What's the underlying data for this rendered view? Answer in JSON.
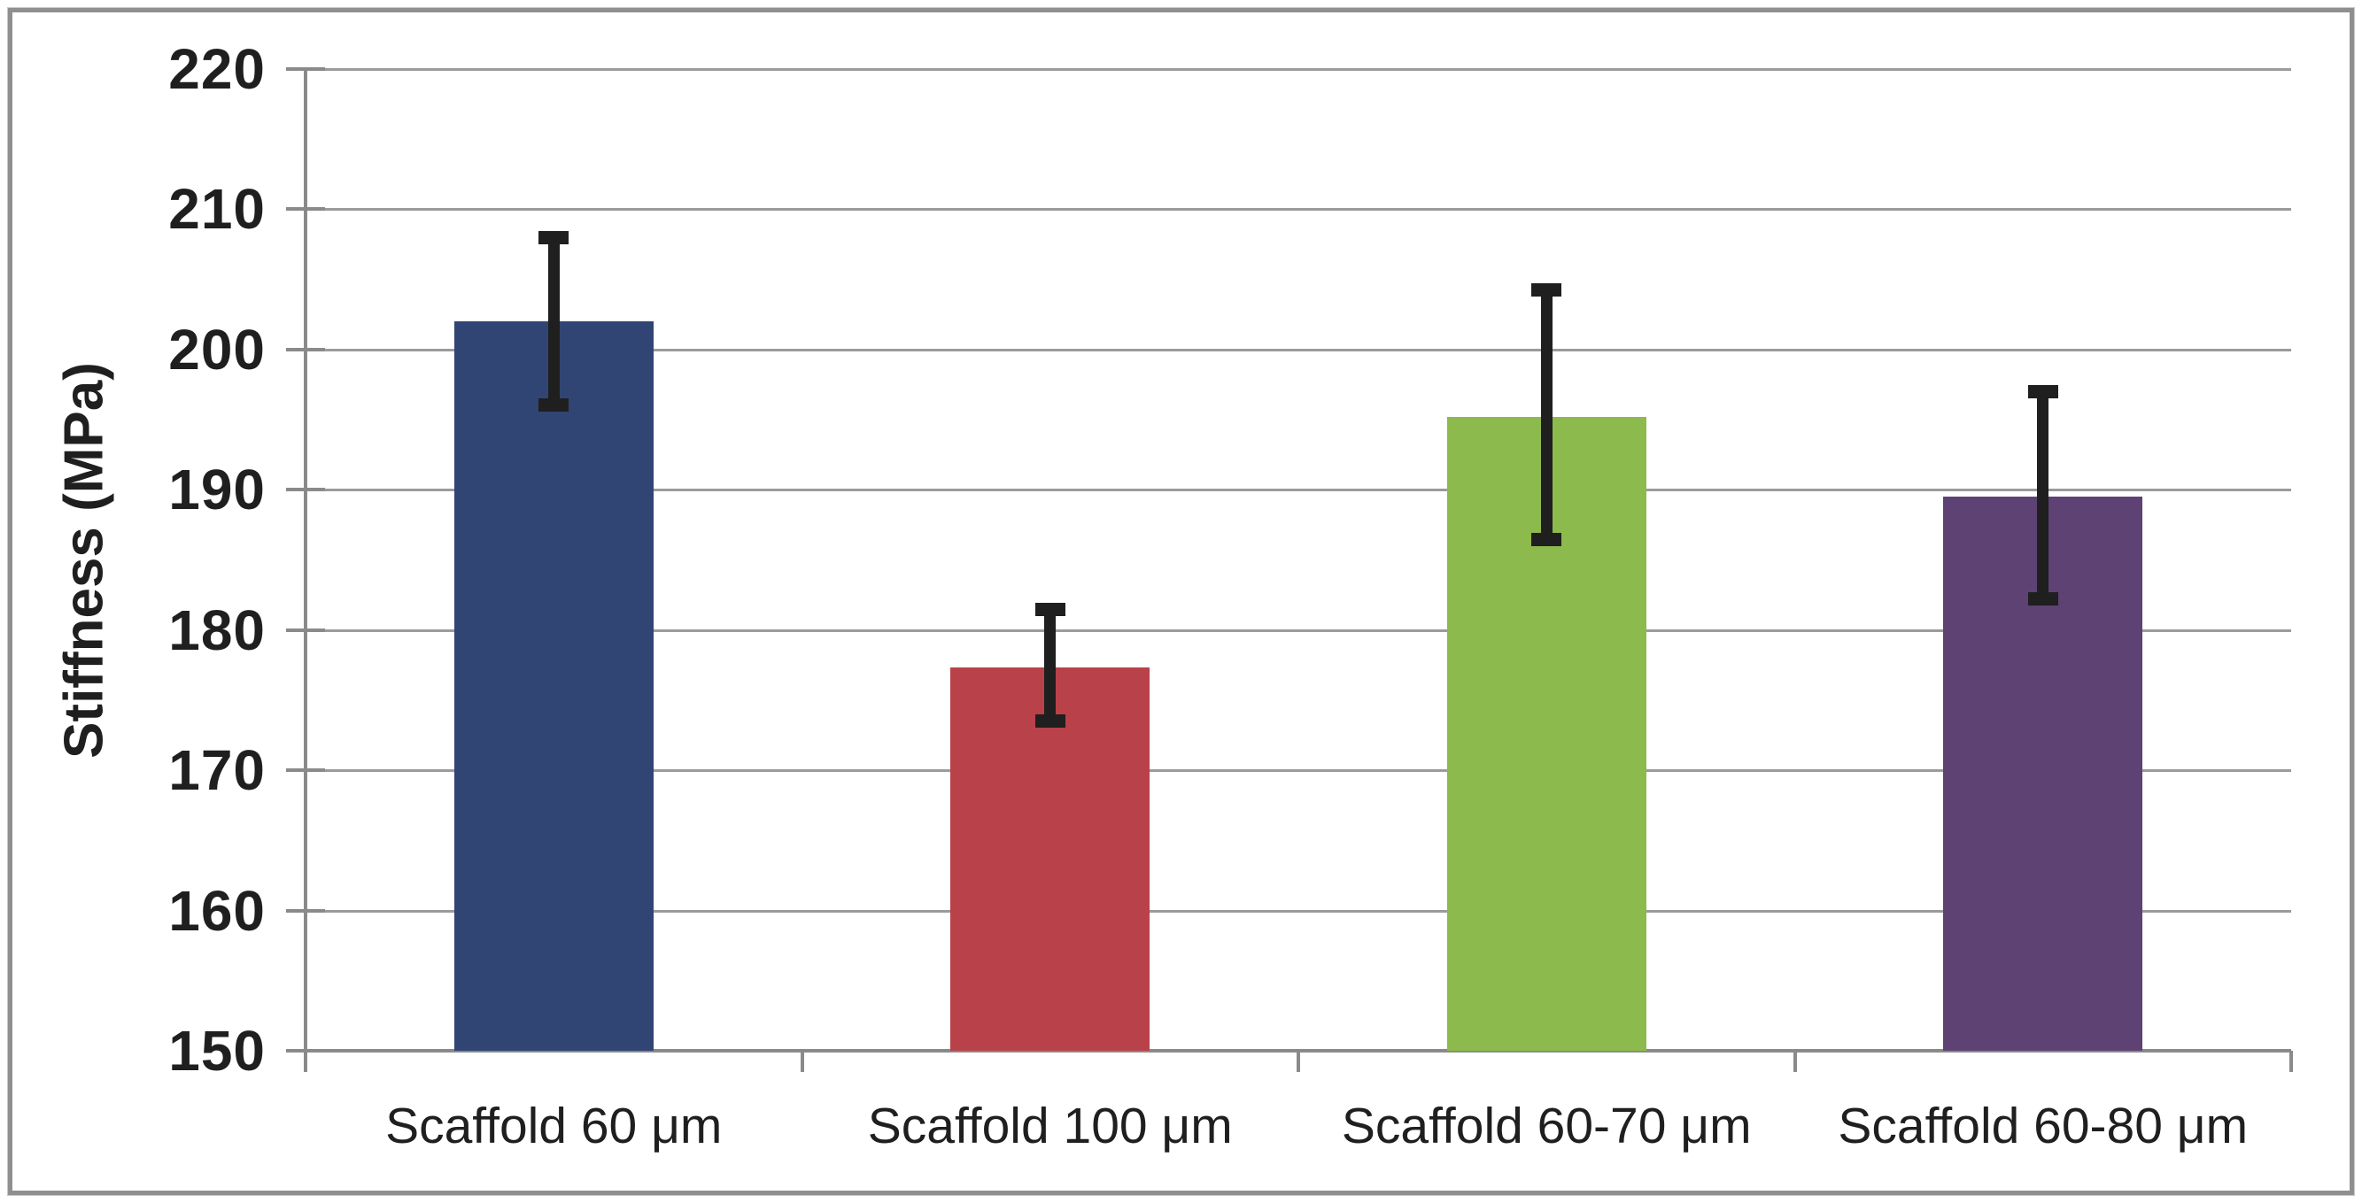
{
  "chart_data": {
    "type": "bar",
    "ylabel": "Stiffness (MPa)",
    "xlabel": "",
    "ylim": [
      150,
      220
    ],
    "yticks": [
      150,
      160,
      170,
      180,
      190,
      200,
      210,
      220
    ],
    "grid": true,
    "legend": "none",
    "categories": [
      "Scaffold 60 μm",
      "Scaffold 100 μm",
      "Scaffold 60-70 μm",
      "Scaffold 60-80 μm"
    ],
    "values": [
      202,
      177.3,
      195.2,
      189.5
    ],
    "error_high": [
      208,
      181.5,
      204.3,
      197
    ],
    "error_low": [
      196,
      173.5,
      186.4,
      182.2
    ],
    "bar_colors": [
      "#304573",
      "#B9414A",
      "#8DBA4C",
      "#5D4273"
    ],
    "gridline_color": "#9B9B9B",
    "axis_color": "#8A8A8A",
    "error_bar_color": "#1F1F1F",
    "text_color": "#1F1F1F",
    "frame_color": "#8F8F8F",
    "background": "#FFFFFF"
  }
}
